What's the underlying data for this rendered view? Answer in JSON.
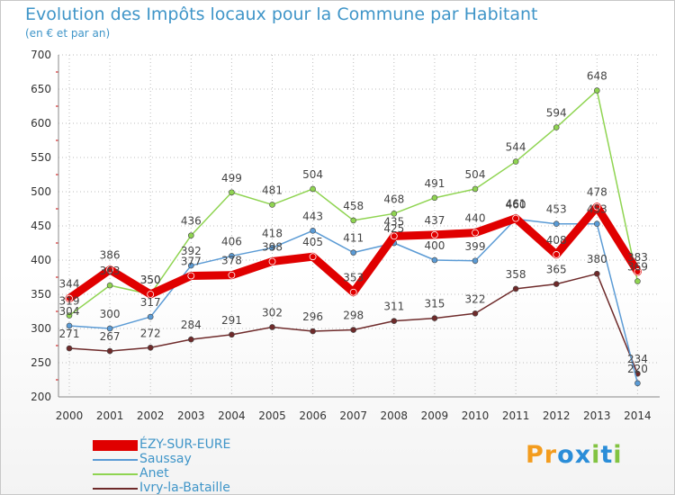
{
  "title": "Evolution des Impôts locaux pour la Commune par Habitant",
  "subtitle": "(en € et par an)",
  "logo": "Proxiti",
  "colors": {
    "title": "#3f95c8",
    "ezy": "#e00000",
    "saussay": "#5b9bd5",
    "anet": "#8fd451",
    "ivry": "#6e2a2a"
  },
  "chart_data": {
    "type": "line",
    "title": "Evolution des Impôts locaux pour la Commune par Habitant",
    "subtitle": "(en € et par an)",
    "xlabel": "",
    "ylabel": "",
    "x": [
      "2000",
      "2001",
      "2002",
      "2003",
      "2004",
      "2005",
      "2006",
      "2007",
      "2008",
      "2009",
      "2010",
      "2011",
      "2012",
      "2013",
      "2014"
    ],
    "ylim": [
      200,
      700
    ],
    "yticks": [
      200,
      250,
      300,
      350,
      400,
      450,
      500,
      550,
      600,
      650,
      700
    ],
    "grid": true,
    "legend_position": "bottom-left",
    "series": [
      {
        "name": "ÉZY-SUR-EURE",
        "color": "#e00000",
        "thick": true,
        "values": [
          344,
          386,
          350,
          377,
          378,
          398,
          405,
          353,
          435,
          437,
          440,
          461,
          408,
          478,
          383
        ],
        "labels": [
          "344",
          "386",
          "350",
          "377",
          "378",
          "398",
          "405",
          "353",
          "435",
          "437",
          "440",
          "461",
          "408",
          "478",
          "383"
        ]
      },
      {
        "name": "Saussay",
        "color": "#5b9bd5",
        "thick": false,
        "values": [
          304,
          300,
          317,
          392,
          406,
          418,
          443,
          411,
          425,
          400,
          399,
          460,
          453,
          453,
          220
        ],
        "labels": [
          "304",
          "300",
          "317",
          "392",
          "406",
          "418",
          "443",
          "411",
          "425",
          "400",
          "399",
          "460",
          "453",
          "453",
          "220"
        ]
      },
      {
        "name": "Anet",
        "color": "#8fd451",
        "thick": false,
        "values": [
          319,
          363,
          350,
          436,
          499,
          481,
          504,
          458,
          468,
          491,
          504,
          544,
          594,
          648,
          369
        ],
        "labels": [
          "319",
          "363",
          "350",
          "436",
          "499",
          "481",
          "504",
          "458",
          "468",
          "491",
          "504",
          "544",
          "594",
          "648",
          "369"
        ]
      },
      {
        "name": "Ivry-la-Bataille",
        "color": "#6e2a2a",
        "thick": false,
        "values": [
          271,
          267,
          272,
          284,
          291,
          302,
          296,
          298,
          311,
          315,
          322,
          358,
          365,
          380,
          234
        ],
        "labels": [
          "271",
          "267",
          "272",
          "284",
          "291",
          "302",
          "296",
          "298",
          "311",
          "315",
          "322",
          "358",
          "365",
          "380",
          "234"
        ]
      }
    ]
  }
}
